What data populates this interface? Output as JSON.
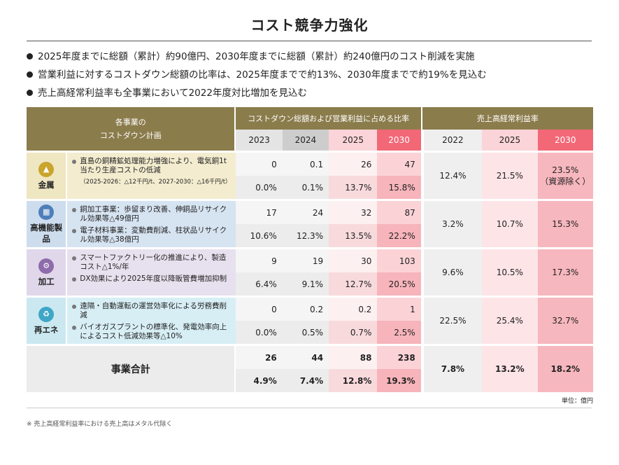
{
  "title": "コスト競争力強化",
  "bullets": [
    "2025年度までに総額（累計）約90億円、2030年度までに総額（累計）約240億円のコスト削減を実施",
    "営業利益に対するコストダウン総額の比率は、2025年度までで約13%、2030年度までで約19%を見込む",
    "売上高経常利益率も全事業において2022年度対比増加を見込む"
  ],
  "table": {
    "left_header": [
      "各事業の",
      "コストダウン計画"
    ],
    "group_cd": "コストダウン総額および営業利益に占める比率",
    "group_margin": "売上高経常利益率",
    "cd_years": [
      "2023",
      "2024",
      "2025",
      "2030"
    ],
    "margin_years": [
      "2022",
      "2025",
      "2030"
    ],
    "segments": [
      {
        "name": "金属",
        "icon": "gold-bars-icon",
        "items": [
          "直島の銅精鉱処理能力増強により、電気銅1t当たり生産コストの低減"
        ],
        "sub": "（2025-2026：△12千円/t、2027-2030：△16千円/t）",
        "amounts": [
          "0",
          "0.1",
          "26",
          "47"
        ],
        "ratios": [
          "0.0%",
          "0.1%",
          "13.7%",
          "15.8%"
        ],
        "margins": [
          "12.4%",
          "21.5%",
          "23.5%"
        ],
        "margin_note": "（資源除く）"
      },
      {
        "name": "高機能製品",
        "icon": "chip-icon",
        "items": [
          "銅加工事業：歩留まり改善、伸銅品リサイクル効果等△49億円",
          "電子材料事業：変動費削減、柱状品リサイクル効果等△38億円"
        ],
        "amounts": [
          "17",
          "24",
          "32",
          "87"
        ],
        "ratios": [
          "10.6%",
          "12.3%",
          "13.5%",
          "22.2%"
        ],
        "margins": [
          "3.2%",
          "10.7%",
          "15.3%"
        ]
      },
      {
        "name": "加工",
        "icon": "gears-icon",
        "items": [
          "スマートファクトリー化の推進により、製造コスト△1%/年",
          "DX効果により2025年度以降販管費増加抑制"
        ],
        "amounts": [
          "9",
          "19",
          "30",
          "103"
        ],
        "ratios": [
          "6.4%",
          "9.1%",
          "12.7%",
          "20.5%"
        ],
        "margins": [
          "9.6%",
          "10.5%",
          "17.3%"
        ]
      },
      {
        "name": "再エネ",
        "icon": "recycle-icon",
        "items": [
          "遠隔・自動運転の運営効率化による労務費削減",
          "バイオガスプラントの標準化、発電効率向上によるコスト低減効果等△10%"
        ],
        "amounts": [
          "0",
          "0.2",
          "0.2",
          "1"
        ],
        "ratios": [
          "0.0%",
          "0.5%",
          "0.7%",
          "2.5%"
        ],
        "margins": [
          "22.5%",
          "25.4%",
          "32.7%"
        ]
      }
    ],
    "total": {
      "label": "事業合計",
      "amounts": [
        "26",
        "44",
        "88",
        "238"
      ],
      "ratios": [
        "4.9%",
        "7.4%",
        "12.8%",
        "19.3%"
      ],
      "margins": [
        "7.8%",
        "13.2%",
        "18.2%"
      ]
    }
  },
  "unit": "単位：億円",
  "footnote": "※ 売上高経常利益率における売上高はメタル代除く",
  "colors": {
    "header_gold": "#8b7c4c",
    "accent_red": "#f26877",
    "pink": "#fad4d8"
  }
}
